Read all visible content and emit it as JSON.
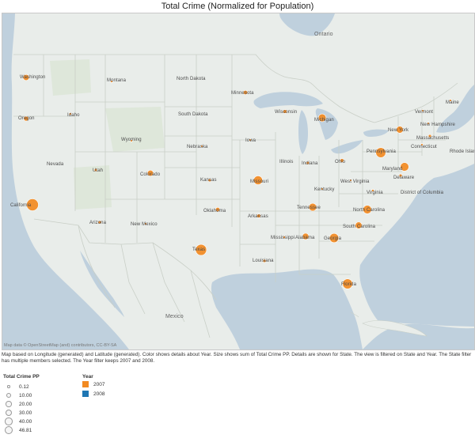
{
  "title": "Total Crime (Normalized for Population)",
  "colors": {
    "land": "#e9edea",
    "water": "#bfd0dd",
    "border": "#c9cfc7",
    "parks": "#d7e3cf",
    "mark_2007": "#f28a21",
    "mark_2008": "#1f77b4"
  },
  "labels": {
    "countries": [
      {
        "text": "Ontario"
      },
      {
        "text": "Mexico"
      }
    ],
    "states": [
      {
        "text": "Washington"
      },
      {
        "text": "Oregon"
      },
      {
        "text": "Idaho"
      },
      {
        "text": "Montana"
      },
      {
        "text": "Wyoming"
      },
      {
        "text": "Nevada"
      },
      {
        "text": "Utah"
      },
      {
        "text": "Colorado"
      },
      {
        "text": "California"
      },
      {
        "text": "Arizona"
      },
      {
        "text": "New Mexico"
      },
      {
        "text": "North Dakota"
      },
      {
        "text": "South Dakota"
      },
      {
        "text": "Nebraska"
      },
      {
        "text": "Kansas"
      },
      {
        "text": "Oklahoma"
      },
      {
        "text": "Texas"
      },
      {
        "text": "Minnesota"
      },
      {
        "text": "Iowa"
      },
      {
        "text": "Missouri"
      },
      {
        "text": "Arkansas"
      },
      {
        "text": "Louisiana"
      },
      {
        "text": "Wisconsin"
      },
      {
        "text": "Illinois"
      },
      {
        "text": "Michigan"
      },
      {
        "text": "Indiana"
      },
      {
        "text": "Ohio"
      },
      {
        "text": "Kentucky"
      },
      {
        "text": "Tennessee"
      },
      {
        "text": "Mississippi"
      },
      {
        "text": "Alabama"
      },
      {
        "text": "Georgia"
      },
      {
        "text": "Florida"
      },
      {
        "text": "South Carolina"
      },
      {
        "text": "North Carolina"
      },
      {
        "text": "Virginia"
      },
      {
        "text": "West Virginia"
      },
      {
        "text": "Pennsylvania"
      },
      {
        "text": "New York"
      },
      {
        "text": "Vermont"
      },
      {
        "text": "New Hampshire"
      },
      {
        "text": "Maine"
      },
      {
        "text": "Massachusetts"
      },
      {
        "text": "Connecticut"
      },
      {
        "text": "Rhode Island"
      },
      {
        "text": "Maryland"
      },
      {
        "text": "Delaware"
      },
      {
        "text": "District of Columbia"
      }
    ]
  },
  "chart_data": {
    "type": "symbol-map",
    "size_measure": "Total Crime PP",
    "color_dimension": "Year",
    "points": [
      {
        "state": "Washington",
        "year": "2007",
        "total_crime_pp": 12
      },
      {
        "state": "Oregon",
        "year": "2007",
        "total_crime_pp": 8
      },
      {
        "state": "Idaho",
        "year": "2007",
        "total_crime_pp": 2
      },
      {
        "state": "Montana",
        "year": "2007",
        "total_crime_pp": 1
      },
      {
        "state": "Wyoming",
        "year": "2007",
        "total_crime_pp": 1
      },
      {
        "state": "Utah",
        "year": "2007",
        "total_crime_pp": 3
      },
      {
        "state": "Colorado",
        "year": "2007",
        "total_crime_pp": 12
      },
      {
        "state": "California",
        "year": "2007",
        "total_crime_pp": 46.81
      },
      {
        "state": "Arizona",
        "year": "2007",
        "total_crime_pp": 3
      },
      {
        "state": "New Mexico",
        "year": "2007",
        "total_crime_pp": 1
      },
      {
        "state": "Kansas",
        "year": "2007",
        "total_crime_pp": 3
      },
      {
        "state": "Nebraska",
        "year": "2007",
        "total_crime_pp": 1
      },
      {
        "state": "Oklahoma",
        "year": "2007",
        "total_crime_pp": 6
      },
      {
        "state": "Texas",
        "year": "2007",
        "total_crime_pp": 40
      },
      {
        "state": "Minnesota",
        "year": "2007",
        "total_crime_pp": 6
      },
      {
        "state": "Iowa",
        "year": "2007",
        "total_crime_pp": 1
      },
      {
        "state": "Missouri",
        "year": "2007",
        "total_crime_pp": 26
      },
      {
        "state": "Arkansas",
        "year": "2007",
        "total_crime_pp": 5
      },
      {
        "state": "Louisiana",
        "year": "2007",
        "total_crime_pp": 3
      },
      {
        "state": "Wisconsin",
        "year": "2007",
        "total_crime_pp": 5
      },
      {
        "state": "Michigan",
        "year": "2007",
        "total_crime_pp": 20
      },
      {
        "state": "Indiana",
        "year": "2007",
        "total_crime_pp": 3
      },
      {
        "state": "Ohio",
        "year": "2007",
        "total_crime_pp": 5
      },
      {
        "state": "Kentucky",
        "year": "2007",
        "total_crime_pp": 1
      },
      {
        "state": "Tennessee",
        "year": "2007",
        "total_crime_pp": 20
      },
      {
        "state": "Mississippi",
        "year": "2007",
        "total_crime_pp": 2
      },
      {
        "state": "Alabama",
        "year": "2007",
        "total_crime_pp": 14
      },
      {
        "state": "Georgia",
        "year": "2007",
        "total_crime_pp": 28
      },
      {
        "state": "Florida",
        "year": "2007",
        "total_crime_pp": 33
      },
      {
        "state": "South Carolina",
        "year": "2007",
        "total_crime_pp": 15
      },
      {
        "state": "North Carolina",
        "year": "2007",
        "total_crime_pp": 24
      },
      {
        "state": "Virginia",
        "year": "2007",
        "total_crime_pp": 2
      },
      {
        "state": "West Virginia",
        "year": "2007",
        "total_crime_pp": 1
      },
      {
        "state": "Pennsylvania",
        "year": "2007",
        "total_crime_pp": 33
      },
      {
        "state": "New York",
        "year": "2007",
        "total_crime_pp": 16
      },
      {
        "state": "Maryland",
        "year": "2007",
        "total_crime_pp": 24
      },
      {
        "state": "Delaware",
        "year": "2007",
        "total_crime_pp": 3
      },
      {
        "state": "Massachusetts",
        "year": "2007",
        "total_crime_pp": 3
      },
      {
        "state": "Connecticut",
        "year": "2007",
        "total_crime_pp": 1
      },
      {
        "state": "Vermont",
        "year": "2007",
        "total_crime_pp": 0.5
      },
      {
        "state": "New Hampshire",
        "year": "2007",
        "total_crime_pp": 0.5
      },
      {
        "state": "Maine",
        "year": "2007",
        "total_crime_pp": 0.5
      }
    ]
  },
  "attribution": "Map data © OpenStreetMap (and) contributors, CC-BY-SA",
  "caption": "Map based on Longitude (generated) and Latitude (generated).  Color shows details about Year.  Size shows sum of Total Crime PP.  Details are shown for State.  The view is filtered on State and Year. The State filter has multiple members selected. The Year filter keeps 2007 and 2008.",
  "legend": {
    "size_title": "Total Crime PP",
    "size_items": [
      {
        "label": "0.12",
        "value": 0.12
      },
      {
        "label": "10.00",
        "value": 10
      },
      {
        "label": "20.00",
        "value": 20
      },
      {
        "label": "30.00",
        "value": 30
      },
      {
        "label": "40.00",
        "value": 40
      },
      {
        "label": "46.81",
        "value": 46.81
      }
    ],
    "color_title": "Year",
    "color_items": [
      {
        "label": "2007",
        "color": "#f28a21"
      },
      {
        "label": "2008",
        "color": "#1f77b4"
      }
    ]
  }
}
